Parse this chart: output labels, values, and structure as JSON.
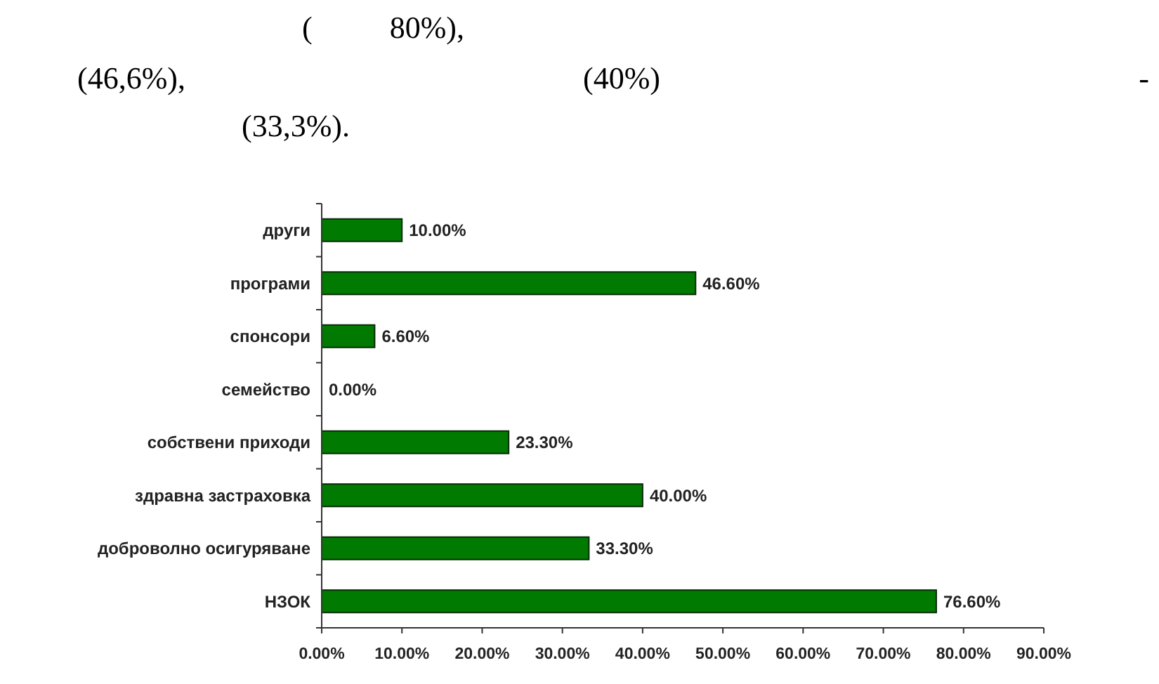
{
  "chart_data": {
    "type": "bar",
    "orientation": "horizontal",
    "categories": [
      "други",
      "програми",
      "спонсори",
      "семейство",
      "собствени приходи",
      "здравна застраховка",
      "доброволно осигуряване",
      "НЗОК"
    ],
    "values": [
      10,
      46.6,
      6.6,
      0,
      23.3,
      40,
      33.3,
      76.6
    ],
    "value_labels": [
      "10.00%",
      "46.60%",
      "6.60%",
      "0.00%",
      "23.30%",
      "40.00%",
      "33.30%",
      "76.60%"
    ],
    "color": "#007a00",
    "xlim": [
      0,
      90
    ],
    "xticks": [
      {
        "value": 0,
        "label": "0.00%"
      },
      {
        "value": 10,
        "label": "10.00%"
      },
      {
        "value": 20,
        "label": "20.00%"
      },
      {
        "value": 30,
        "label": "30.00%"
      },
      {
        "value": 40,
        "label": "40.00%"
      },
      {
        "value": 50,
        "label": "50.00%"
      },
      {
        "value": 60,
        "label": "60.00%"
      },
      {
        "value": 70,
        "label": "70.00%"
      },
      {
        "value": 80,
        "label": "80.00%"
      },
      {
        "value": 90,
        "label": "90.00%"
      }
    ],
    "annotations": [
      "(          80%),",
      "(46,6%),",
      "(40%)",
      "-",
      "(33,3%)."
    ],
    "grid": false
  }
}
